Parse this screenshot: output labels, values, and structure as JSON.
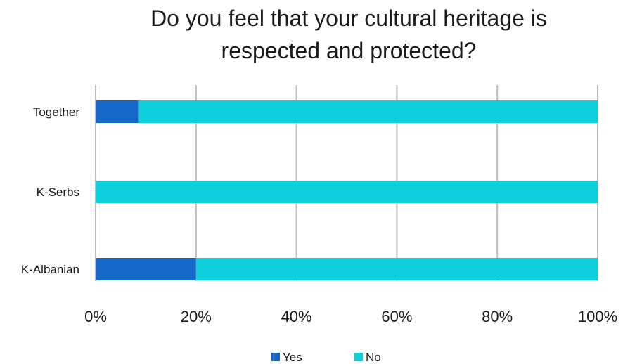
{
  "chart_data": {
    "type": "bar",
    "orientation": "horizontal",
    "stacked": "percent",
    "title_lines": [
      "Do you feel that your cultural heritage is",
      "respected and protected?"
    ],
    "categories": [
      "Together",
      "K-Serbs",
      "K-Albanian"
    ],
    "series": [
      {
        "name": "Yes",
        "values": [
          8.5,
          0,
          20
        ],
        "color": "#1769c7"
      },
      {
        "name": "No",
        "values": [
          91.5,
          100,
          80
        ],
        "color": "#0dd0dc"
      }
    ],
    "x_ticks": [
      "0%",
      "20%",
      "40%",
      "60%",
      "80%",
      "100%"
    ],
    "xlim": [
      0,
      100
    ],
    "grid": "vertical",
    "legend_position": "bottom"
  }
}
